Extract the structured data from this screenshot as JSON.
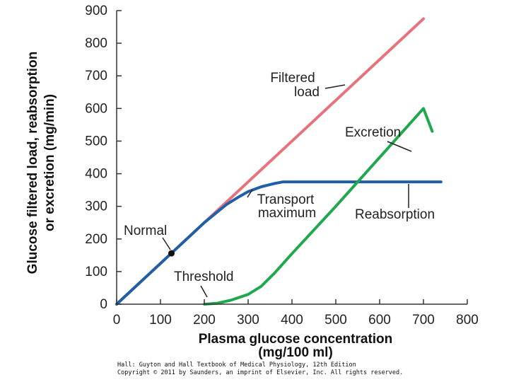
{
  "chart_data": {
    "type": "line",
    "xlabel_line1": "Plasma glucose concentration",
    "xlabel_line2": "(mg/100 ml)",
    "ylabel_line1": "Glucose filtered load, reabsorption",
    "ylabel_line2": "or excretion (mg/min)",
    "xlim": [
      0,
      800
    ],
    "ylim": [
      0,
      900
    ],
    "xticks": [
      "0",
      "100",
      "200",
      "300",
      "400",
      "500",
      "600",
      "700",
      "800"
    ],
    "yticks": [
      "0",
      "100",
      "200",
      "300",
      "400",
      "500",
      "600",
      "700",
      "800",
      "900"
    ],
    "grid": false,
    "series": [
      {
        "name": "Filtered load",
        "color": "#e8727a",
        "x": [
          0,
          700
        ],
        "y": [
          0,
          875
        ]
      },
      {
        "name": "Reabsorption",
        "color": "#1f5fa8",
        "x": [
          0,
          100,
          200,
          250,
          280,
          300,
          330,
          360,
          380,
          400,
          500,
          600,
          700,
          740
        ],
        "y": [
          0,
          125,
          250,
          305,
          330,
          345,
          360,
          370,
          375,
          375,
          375,
          375,
          375,
          375
        ]
      },
      {
        "name": "Excretion",
        "color": "#1fa84e",
        "x": [
          200,
          230,
          260,
          300,
          330,
          360,
          400,
          500,
          600,
          700,
          720
        ],
        "y": [
          0,
          3,
          12,
          30,
          55,
          95,
          155,
          300,
          450,
          600,
          530
        ]
      }
    ],
    "annotations": {
      "filtered": [
        "Filtered",
        "load"
      ],
      "excretion": "Excretion",
      "transport": [
        "Transport",
        "maximum"
      ],
      "reabsorption": "Reabsorption",
      "normal": "Normal",
      "threshold": "Threshold"
    },
    "normal_point": {
      "x": 125,
      "y": 156
    }
  },
  "credit": {
    "line1": "Hall: Guyton and Hall Textbook of Medical Physiology, 12th Edition",
    "line2": "Copyright © 2011 by Saunders, an imprint of Elsevier, Inc. All rights reserved."
  }
}
